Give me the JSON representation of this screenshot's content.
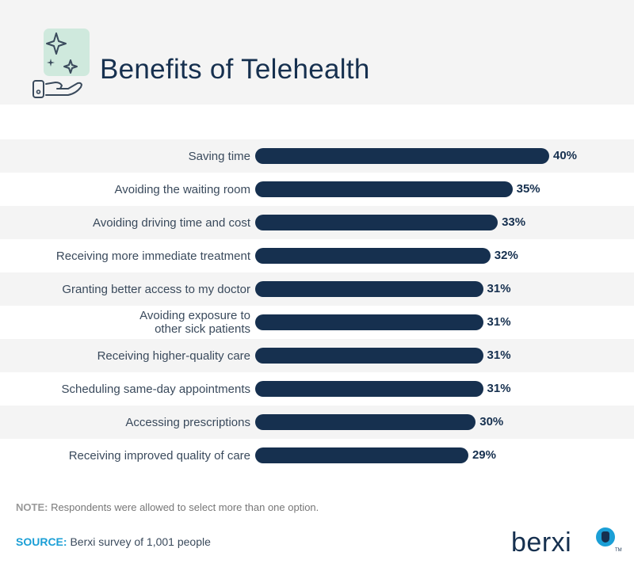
{
  "title": "Benefits of Telehealth",
  "header_icon": "sparkles-over-hand-with-phone-icon",
  "colors": {
    "bar": "#16304f",
    "band": "#f4f4f4",
    "accent": "#1b9fd6",
    "icon_bg": "#cfe9dd"
  },
  "chart_data": {
    "type": "bar",
    "orientation": "horizontal",
    "categories": [
      "Saving time",
      "Avoiding the waiting room",
      "Avoiding driving time and cost",
      "Receiving more immediate treatment",
      "Granting better access to my doctor",
      "Avoiding exposure to\nother sick patients",
      "Receiving higher-quality care",
      "Scheduling same-day appointments",
      "Accessing prescriptions",
      "Receiving improved quality of care"
    ],
    "values": [
      40,
      35,
      33,
      32,
      31,
      31,
      31,
      31,
      30,
      29
    ],
    "value_labels": [
      "40%",
      "35%",
      "33%",
      "32%",
      "31%",
      "31%",
      "31%",
      "31%",
      "30%",
      "29%"
    ],
    "unit": "%",
    "title": "Benefits of Telehealth",
    "xlabel": "",
    "ylabel": "",
    "grid": false,
    "legend": "none"
  },
  "note": {
    "lead": "NOTE:",
    "text": " Respondents were allowed to select more than one option."
  },
  "source": {
    "lead": "SOURCE:",
    "text": " Berxi survey of 1,001 people"
  },
  "brand": {
    "name": "berxi",
    "tm": "TM",
    "icon": "berxi-logo-icon"
  }
}
